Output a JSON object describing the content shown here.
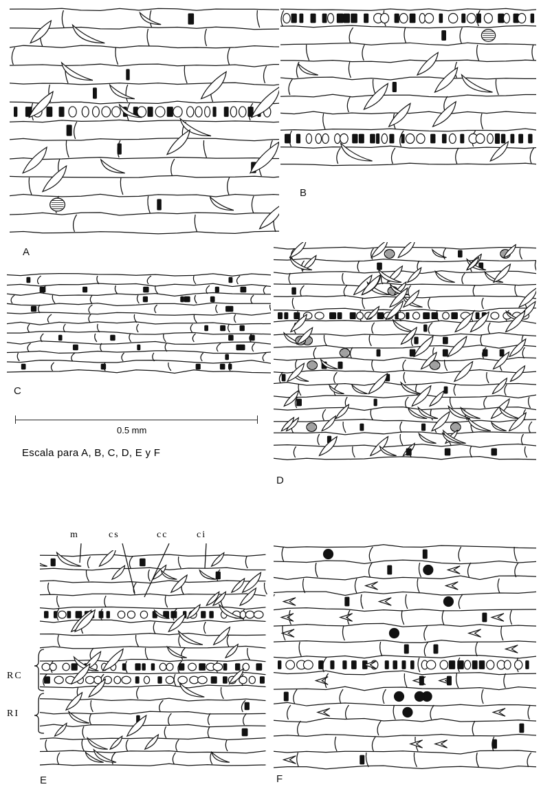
{
  "figure": {
    "panels": [
      {
        "label": "A",
        "cell_style": "sparse, long cells",
        "features": [
          "prickles",
          "silica cells",
          "stomata"
        ]
      },
      {
        "label": "B",
        "cell_style": "sparse, long cells",
        "features": [
          "prickles",
          "silica cells",
          "stomata"
        ]
      },
      {
        "label": "C",
        "cell_style": "dense, narrow cells",
        "features": [
          "silica cells"
        ]
      },
      {
        "label": "D",
        "cell_style": "dense, many prickles",
        "features": [
          "prickles",
          "silica cells",
          "stomata"
        ]
      },
      {
        "label": "E",
        "cell_style": "annotated",
        "features": [
          "prickles",
          "silica cells"
        ]
      },
      {
        "label": "F",
        "cell_style": "hook cells",
        "features": [
          "hooks",
          "silica cells"
        ]
      }
    ],
    "scale_bar": {
      "length_label": "0.5 mm",
      "caption": "Escala para A, B, C, D, E y F"
    },
    "annotations": {
      "top": [
        "m",
        "cs",
        "cc",
        "ci"
      ],
      "side": [
        "RC",
        "RI"
      ]
    },
    "colors": {
      "ink": "#111111",
      "background": "#ffffff"
    }
  }
}
